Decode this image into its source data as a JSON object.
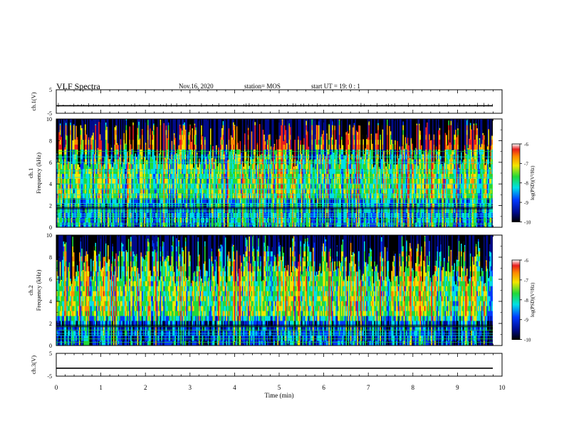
{
  "header": {
    "title": "VLF Spectra",
    "date": "Nov.16, 2020",
    "station": "station= MOS",
    "start": "start  UT =   19: 0  : 1"
  },
  "chart_data": [
    {
      "type": "line",
      "panel": "ch1-voltage",
      "ylabel": "ch.1(V)",
      "ylim": [
        -5,
        5
      ],
      "yticks": [
        "5",
        "-5"
      ],
      "x": [
        0,
        9.8
      ],
      "values": [
        -1.8,
        -1.8
      ],
      "note_trace": "flat trace with sparse small spikes"
    },
    {
      "type": "heatmap",
      "panel": "ch1-spectrogram",
      "ylabel": "ch.1\nFrequency (kHz)",
      "ylim": [
        0,
        10
      ],
      "yticks": [
        "0",
        "2",
        "4",
        "6",
        "8",
        "10"
      ],
      "xlim": [
        0,
        9.8
      ],
      "colorbar": {
        "label": "log(PSD)(V²/Hz)",
        "ticks": [
          "-6",
          "-7",
          "-8",
          "-9",
          "-10"
        ],
        "range": [
          -10,
          -6
        ]
      },
      "bands_khz": [
        0.3,
        0.7,
        1.0,
        1.2,
        1.5,
        2.0,
        2.2,
        2.6,
        3.0,
        3.5,
        4.0,
        4.6,
        5.2,
        6.0,
        6.5,
        7.0
      ]
    },
    {
      "type": "heatmap",
      "panel": "ch2-spectrogram",
      "ylabel": "ch.2\nFrequency (kHz)",
      "ylim": [
        0,
        10
      ],
      "yticks": [
        "0",
        "2",
        "4",
        "6",
        "8",
        "10"
      ],
      "xlim": [
        0,
        9.8
      ],
      "colorbar": {
        "label": "log(PSD)(V²/Hz)",
        "ticks": [
          "-6",
          "-7",
          "-8",
          "-9",
          "-10"
        ],
        "range": [
          -10,
          -6
        ]
      },
      "bands_khz": [
        0.3,
        0.6,
        0.9,
        1.1,
        1.4,
        1.7
      ]
    },
    {
      "type": "line",
      "panel": "ch3-voltage",
      "ylabel": "ch.3(V)",
      "ylim": [
        -5,
        5
      ],
      "yticks": [
        "5",
        "-5"
      ],
      "x": [
        0,
        9.8
      ],
      "values": [
        -1.5,
        -1.5
      ]
    }
  ],
  "xaxis": {
    "label": "Time (min)",
    "ticks": [
      "0",
      "1",
      "2",
      "3",
      "4",
      "5",
      "6",
      "7",
      "8",
      "9",
      "10"
    ],
    "xlim": [
      0,
      10
    ]
  },
  "colors": {
    "black": "#000000",
    "darkblue": "#000b8a",
    "blue": "#0038ff",
    "cyan": "#00e0e6",
    "green": "#22d93a",
    "yellow": "#f2e600",
    "orange": "#ff8a00",
    "red": "#e81e1e",
    "white": "#ffffff"
  }
}
